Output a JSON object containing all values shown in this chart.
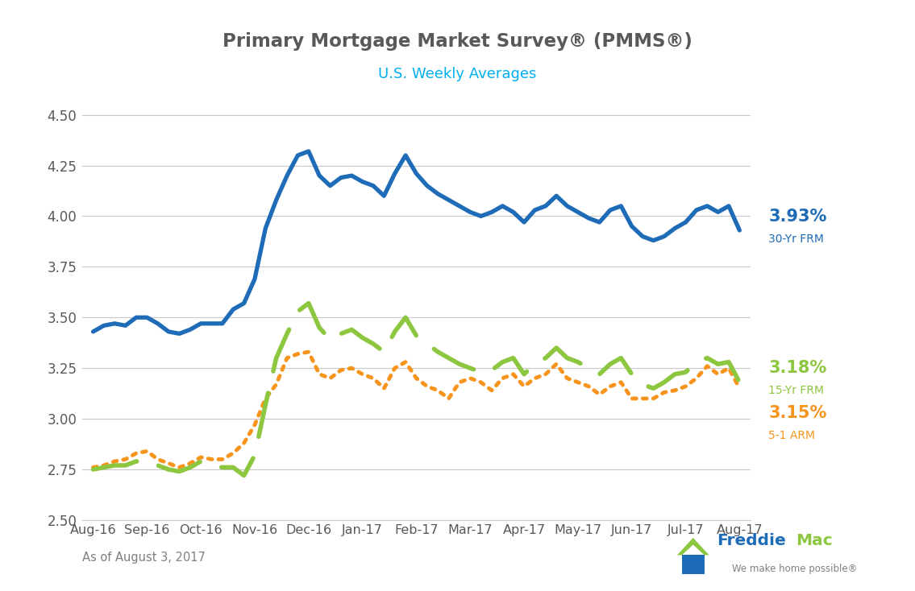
{
  "title": "Primary Mortgage Market Survey® (PMMS®)",
  "subtitle": "U.S. Weekly Averages",
  "footnote": "As of August 3, 2017",
  "title_color": "#595959",
  "subtitle_color": "#00AEEF",
  "footnote_color": "#808080",
  "x_labels": [
    "Aug-16",
    "Sep-16",
    "Oct-16",
    "Nov-16",
    "Dec-16",
    "Jan-17",
    "Feb-17",
    "Mar-17",
    "Apr-17",
    "May-17",
    "Jun-17",
    "Jul-17",
    "Aug-17"
  ],
  "ylim": [
    2.5,
    4.6
  ],
  "yticks": [
    2.5,
    2.75,
    3.0,
    3.25,
    3.5,
    3.75,
    4.0,
    4.25,
    4.5
  ],
  "frm30_color": "#1E6BB8",
  "frm15_color": "#8DC63F",
  "arm51_color": "#F7941D",
  "frm30_label_pct": "3.93%",
  "frm30_label_name": "30-Yr FRM",
  "frm15_label_pct": "3.18%",
  "frm15_label_name": "15-Yr FRM",
  "arm51_label_pct": "3.15%",
  "arm51_label_name": "5-1 ARM",
  "frm30": [
    3.43,
    3.46,
    3.47,
    3.46,
    3.5,
    3.5,
    3.47,
    3.43,
    3.42,
    3.44,
    3.47,
    3.47,
    3.47,
    3.54,
    3.57,
    3.69,
    3.94,
    4.08,
    4.2,
    4.3,
    4.32,
    4.2,
    4.15,
    4.19,
    4.2,
    4.17,
    4.15,
    4.1,
    4.21,
    4.3,
    4.21,
    4.15,
    4.11,
    4.08,
    4.05,
    4.02,
    4.0,
    4.02,
    4.05,
    4.02,
    3.97,
    4.03,
    4.05,
    4.1,
    4.05,
    4.02,
    3.99,
    3.97,
    4.03,
    4.05,
    3.95,
    3.9,
    3.88,
    3.9,
    3.94,
    3.97,
    4.03,
    4.05,
    4.02,
    4.05,
    3.93
  ],
  "frm15": [
    2.75,
    2.76,
    2.77,
    2.77,
    2.79,
    2.79,
    2.77,
    2.75,
    2.74,
    2.76,
    2.79,
    2.77,
    2.76,
    2.76,
    2.72,
    2.82,
    3.07,
    3.3,
    3.42,
    3.53,
    3.57,
    3.45,
    3.39,
    3.42,
    3.44,
    3.4,
    3.37,
    3.33,
    3.43,
    3.5,
    3.41,
    3.37,
    3.33,
    3.3,
    3.27,
    3.25,
    3.23,
    3.24,
    3.28,
    3.3,
    3.22,
    3.27,
    3.3,
    3.35,
    3.3,
    3.28,
    3.25,
    3.22,
    3.27,
    3.3,
    3.22,
    3.17,
    3.15,
    3.18,
    3.22,
    3.23,
    3.28,
    3.3,
    3.27,
    3.28,
    3.18
  ],
  "arm51": [
    2.76,
    2.77,
    2.79,
    2.8,
    2.83,
    2.84,
    2.8,
    2.78,
    2.76,
    2.78,
    2.81,
    2.8,
    2.8,
    2.83,
    2.88,
    2.97,
    3.1,
    3.17,
    3.3,
    3.32,
    3.33,
    3.22,
    3.2,
    3.24,
    3.25,
    3.22,
    3.2,
    3.15,
    3.25,
    3.28,
    3.2,
    3.16,
    3.14,
    3.1,
    3.18,
    3.2,
    3.18,
    3.14,
    3.2,
    3.22,
    3.16,
    3.2,
    3.22,
    3.27,
    3.2,
    3.18,
    3.16,
    3.12,
    3.16,
    3.18,
    3.1,
    3.1,
    3.1,
    3.13,
    3.14,
    3.16,
    3.2,
    3.26,
    3.22,
    3.25,
    3.15
  ],
  "bg_color": "#FFFFFF",
  "grid_color": "#C8C8C8",
  "freddie_blue": "#1E6BB8",
  "freddie_green": "#8DC63F",
  "freddie_orange": "#F7941D",
  "freddie_gray": "#808080"
}
